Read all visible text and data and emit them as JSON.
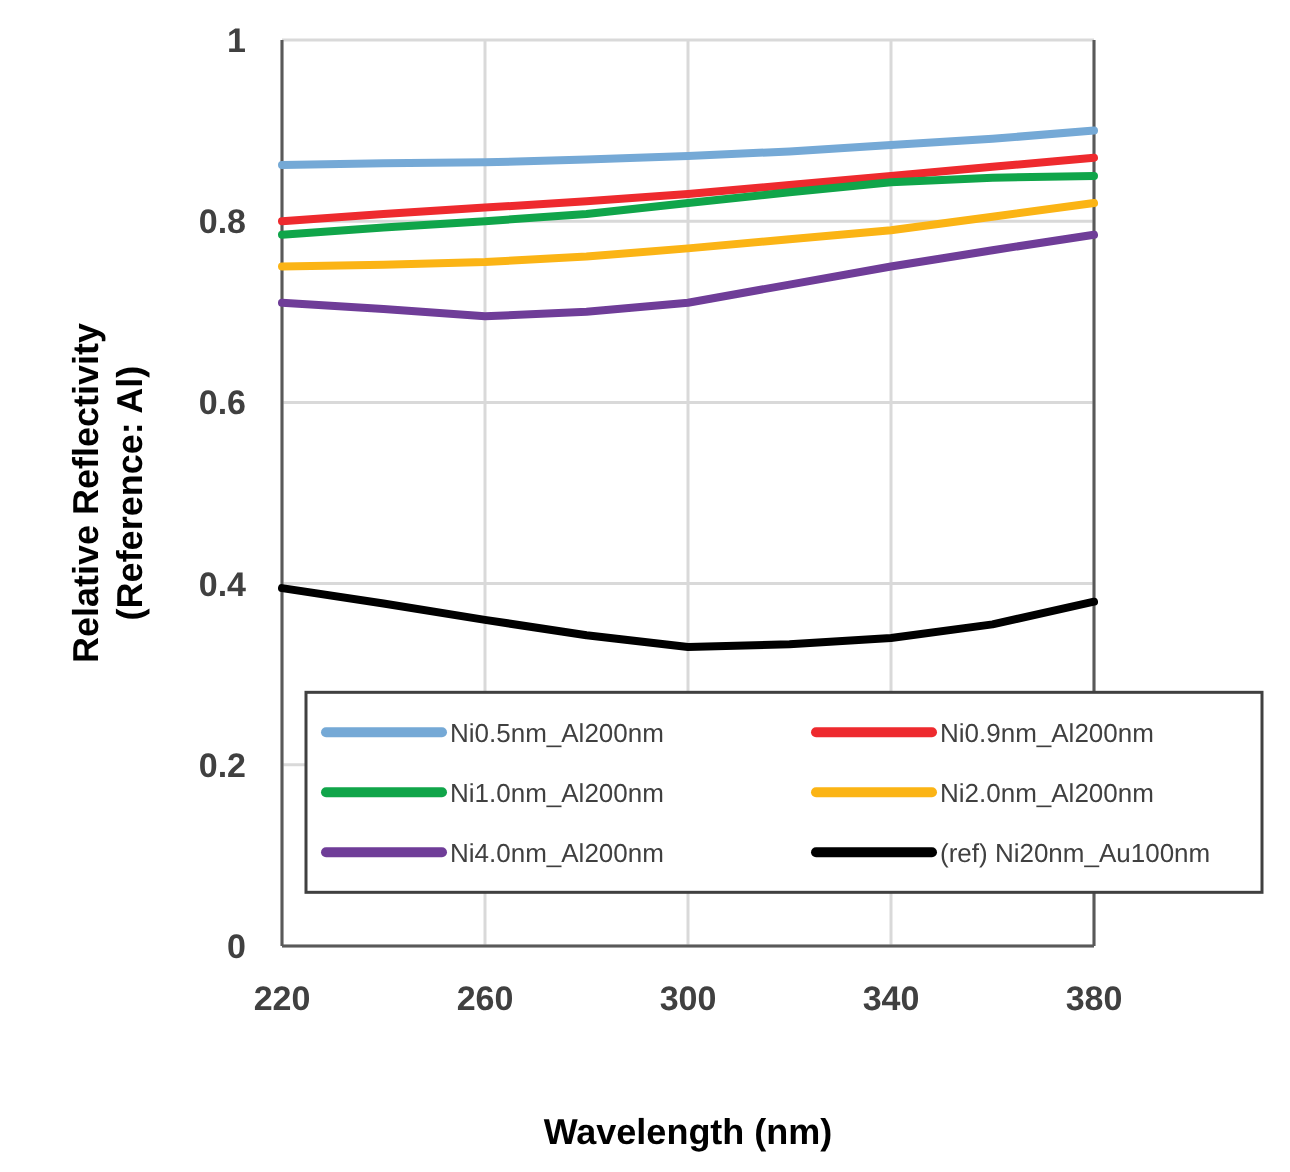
{
  "chart_data": {
    "type": "line",
    "xlabel": "Wavelength (nm)",
    "ylabel": "Relative Reflectivity\n(Reference:  Al)",
    "x": [
      220,
      240,
      260,
      280,
      300,
      320,
      340,
      360,
      380
    ],
    "xlim": [
      220,
      380
    ],
    "xticks": [
      220,
      260,
      300,
      340,
      380
    ],
    "ylim": [
      0,
      1
    ],
    "yticks": [
      0,
      0.2,
      0.4,
      0.6,
      0.8,
      1
    ],
    "grid": true,
    "legend": "bottom",
    "line_style": "solid",
    "marker": "none",
    "series": [
      {
        "name": "Ni0.5nm_Al200nm",
        "color": "#75a9d6",
        "values": [
          0.862,
          0.864,
          0.865,
          0.868,
          0.872,
          0.877,
          0.884,
          0.891,
          0.9
        ]
      },
      {
        "name": "Ni0.9nm_Al200nm",
        "color": "#ee2a2e",
        "values": [
          0.8,
          0.808,
          0.815,
          0.822,
          0.83,
          0.84,
          0.85,
          0.86,
          0.87
        ]
      },
      {
        "name": "Ni1.0nm_Al200nm",
        "color": "#10a54a",
        "values": [
          0.785,
          0.793,
          0.8,
          0.808,
          0.82,
          0.832,
          0.843,
          0.848,
          0.85
        ]
      },
      {
        "name": "Ni2.0nm_Al200nm",
        "color": "#fbb415",
        "values": [
          0.75,
          0.752,
          0.755,
          0.761,
          0.77,
          0.78,
          0.79,
          0.805,
          0.82
        ]
      },
      {
        "name": "Ni4.0nm_Al200nm",
        "color": "#6f3d98",
        "values": [
          0.71,
          0.703,
          0.695,
          0.7,
          0.71,
          0.73,
          0.75,
          0.768,
          0.785
        ]
      },
      {
        "name": "(ref) Ni20nm_Au100nm",
        "color": "#000000",
        "values": [
          0.395,
          0.378,
          0.36,
          0.343,
          0.33,
          0.333,
          0.34,
          0.355,
          0.38
        ]
      }
    ]
  }
}
